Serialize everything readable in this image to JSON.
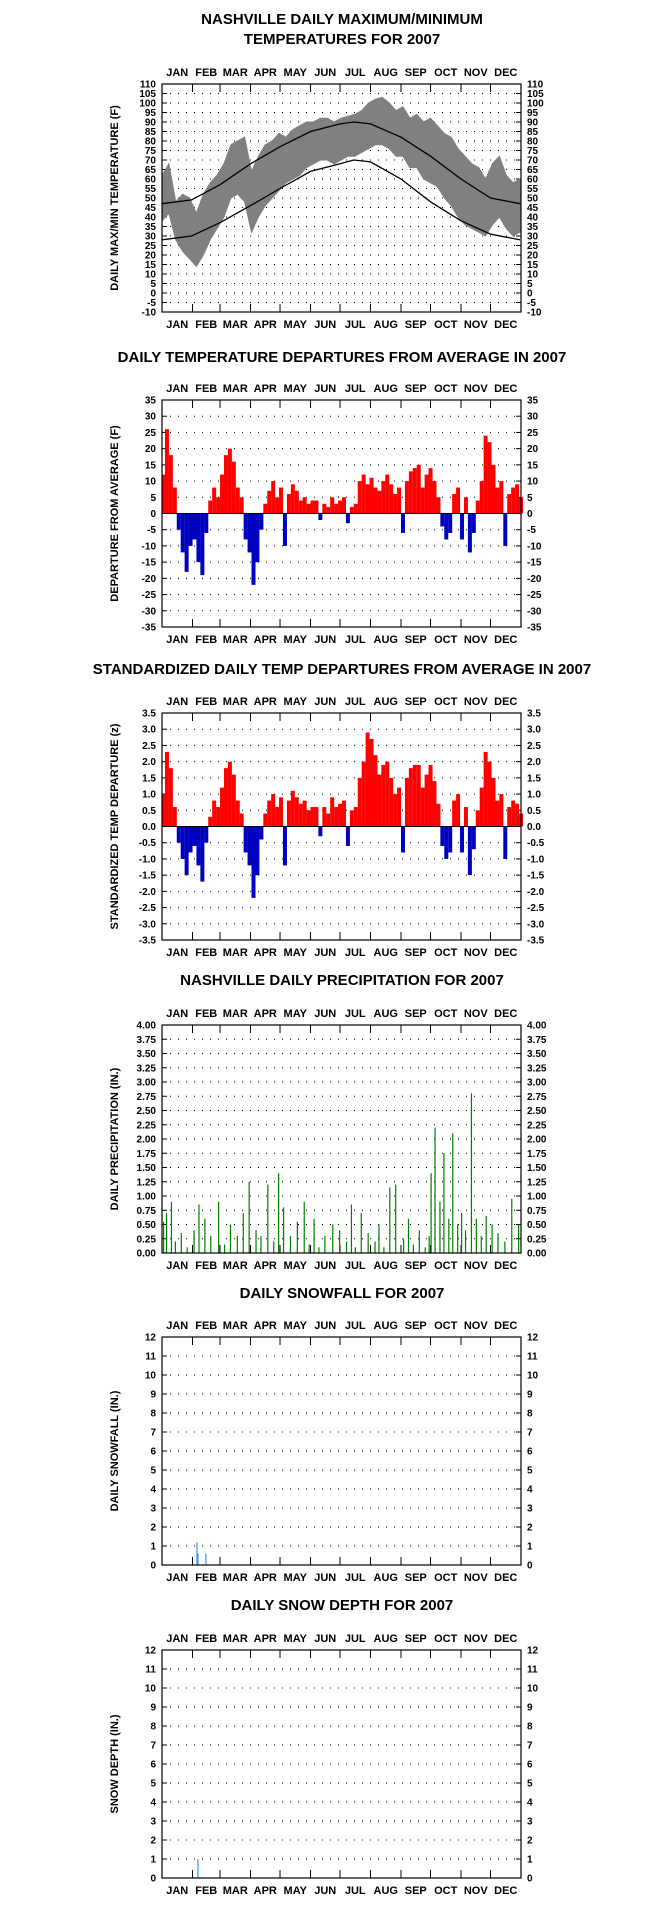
{
  "months": [
    "JAN",
    "FEB",
    "MAR",
    "APR",
    "MAY",
    "JUN",
    "JUL",
    "AUG",
    "SEP",
    "OCT",
    "NOV",
    "DEC"
  ],
  "colors": {
    "observed": "#808080",
    "normal": "#000000",
    "positive": "#ff0000",
    "negative": "#0000c0",
    "precip": "#008000",
    "snow": "#3399ff",
    "frame": "#000000",
    "grid_dots": "#000000"
  },
  "chart_data": [
    {
      "type": "line",
      "id": "temps",
      "title_lines": [
        "NASHVILLE DAILY MAXIMUM/MINIMUM",
        "TEMPERATURES FOR 2007"
      ],
      "ylabel": "DAILY MAX/MIN TEMPERATURE (F)",
      "ylim": [
        -10,
        110
      ],
      "ystep": 5,
      "decimals": 0,
      "grid": "dotted",
      "normals": {
        "x_day": [
          1,
          31,
          60,
          91,
          121,
          152,
          182,
          196,
          213,
          244,
          274,
          305,
          335,
          365
        ],
        "max": [
          47,
          49,
          57,
          68,
          77,
          85,
          89,
          90,
          89,
          82,
          72,
          60,
          50,
          47
        ],
        "min": [
          28,
          30,
          37,
          46,
          55,
          64,
          68,
          70,
          69,
          60,
          48,
          38,
          31,
          28
        ]
      },
      "observed_range": {
        "x_day": [
          1,
          8,
          15,
          22,
          29,
          36,
          43,
          50,
          57,
          64,
          71,
          78,
          85,
          92,
          99,
          106,
          113,
          120,
          127,
          134,
          141,
          148,
          155,
          162,
          169,
          176,
          183,
          190,
          197,
          204,
          211,
          218,
          225,
          232,
          239,
          246,
          253,
          260,
          267,
          274,
          281,
          288,
          295,
          302,
          309,
          316,
          323,
          330,
          337,
          344,
          351,
          358,
          365
        ],
        "high": [
          62,
          68,
          48,
          52,
          50,
          42,
          52,
          58,
          62,
          68,
          78,
          80,
          82,
          64,
          72,
          78,
          80,
          84,
          82,
          86,
          88,
          90,
          90,
          92,
          92,
          90,
          92,
          93,
          94,
          96,
          100,
          102,
          103,
          100,
          96,
          98,
          92,
          94,
          90,
          92,
          88,
          84,
          82,
          76,
          72,
          68,
          66,
          60,
          68,
          72,
          62,
          58,
          60
        ],
        "low": [
          38,
          42,
          28,
          22,
          18,
          14,
          20,
          28,
          34,
          40,
          50,
          52,
          48,
          32,
          40,
          46,
          50,
          54,
          58,
          60,
          62,
          66,
          68,
          70,
          70,
          68,
          70,
          72,
          72,
          74,
          76,
          78,
          78,
          76,
          72,
          72,
          66,
          66,
          60,
          58,
          56,
          50,
          46,
          40,
          36,
          34,
          32,
          30,
          36,
          40,
          34,
          30,
          32
        ]
      }
    },
    {
      "type": "bar",
      "id": "departures",
      "title_lines": [
        "DAILY TEMPERATURE DEPARTURES FROM AVERAGE IN 2007"
      ],
      "ylabel": "DEPARTURE FROM AVERAGE (F)",
      "ylim": [
        -35,
        35
      ],
      "ystep": 5,
      "decimals": 0,
      "grid": "dotted",
      "x_day": [
        1,
        4,
        8,
        12,
        16,
        20,
        24,
        28,
        32,
        36,
        40,
        44,
        48,
        52,
        56,
        60,
        64,
        68,
        72,
        76,
        80,
        84,
        88,
        92,
        96,
        100,
        104,
        108,
        112,
        116,
        120,
        124,
        128,
        132,
        136,
        140,
        144,
        148,
        152,
        156,
        160,
        164,
        168,
        172,
        176,
        180,
        184,
        188,
        192,
        196,
        200,
        204,
        208,
        212,
        216,
        220,
        224,
        228,
        232,
        236,
        240,
        244,
        248,
        252,
        256,
        260,
        264,
        268,
        272,
        276,
        280,
        284,
        288,
        292,
        296,
        300,
        304,
        308,
        312,
        316,
        320,
        324,
        328,
        332,
        336,
        340,
        344,
        348,
        352,
        356,
        360,
        364
      ],
      "values": [
        12,
        26,
        18,
        8,
        -5,
        -12,
        -18,
        -10,
        -8,
        -15,
        -19,
        -6,
        4,
        8,
        5,
        12,
        18,
        20,
        16,
        8,
        5,
        -8,
        -12,
        -22,
        -15,
        -5,
        3,
        7,
        10,
        5,
        8,
        -10,
        6,
        9,
        7,
        4,
        5,
        3,
        4,
        4,
        -2,
        3,
        2,
        5,
        3,
        4,
        5,
        -3,
        2,
        3,
        10,
        12,
        9,
        11,
        8,
        7,
        10,
        12,
        9,
        6,
        8,
        -6,
        10,
        13,
        14,
        15,
        8,
        12,
        14,
        10,
        5,
        -4,
        -8,
        -6,
        6,
        8,
        -8,
        5,
        -12,
        -6,
        4,
        10,
        24,
        22,
        15,
        8,
        10,
        -10,
        6,
        8,
        9,
        5
      ]
    },
    {
      "type": "bar",
      "id": "std_departures",
      "title_lines": [
        "STANDARDIZED DAILY TEMP DEPARTURES FROM AVERAGE IN 2007"
      ],
      "ylabel": "STANDARDIZED TEMP DEPARTURE (z)",
      "ylim": [
        -3.5,
        3.5
      ],
      "ystep": 0.5,
      "decimals": 1,
      "grid": "dotted",
      "x_day": [
        1,
        4,
        8,
        12,
        16,
        20,
        24,
        28,
        32,
        36,
        40,
        44,
        48,
        52,
        56,
        60,
        64,
        68,
        72,
        76,
        80,
        84,
        88,
        92,
        96,
        100,
        104,
        108,
        112,
        116,
        120,
        124,
        128,
        132,
        136,
        140,
        144,
        148,
        152,
        156,
        160,
        164,
        168,
        172,
        176,
        180,
        184,
        188,
        192,
        196,
        200,
        204,
        208,
        212,
        216,
        220,
        224,
        228,
        232,
        236,
        240,
        244,
        248,
        252,
        256,
        260,
        264,
        268,
        272,
        276,
        280,
        284,
        288,
        292,
        296,
        300,
        304,
        308,
        312,
        316,
        320,
        324,
        328,
        332,
        336,
        340,
        344,
        348,
        352,
        356,
        360,
        364
      ],
      "values": [
        1.0,
        2.3,
        1.8,
        0.6,
        -0.5,
        -1.0,
        -1.5,
        -0.8,
        -0.6,
        -1.2,
        -1.7,
        -0.5,
        0.3,
        0.8,
        0.6,
        1.2,
        1.8,
        2.0,
        1.6,
        0.8,
        0.4,
        -0.8,
        -1.2,
        -2.2,
        -1.5,
        -0.4,
        0.4,
        0.8,
        1.0,
        0.6,
        0.9,
        -1.2,
        0.8,
        1.1,
        0.9,
        0.7,
        0.8,
        0.5,
        0.6,
        0.6,
        -0.3,
        0.6,
        0.4,
        0.9,
        0.6,
        0.7,
        0.8,
        -0.6,
        0.5,
        0.6,
        1.5,
        2.0,
        2.9,
        2.7,
        2.2,
        1.6,
        1.9,
        2.0,
        1.5,
        1.0,
        1.2,
        -0.8,
        1.5,
        1.8,
        1.9,
        1.9,
        1.2,
        1.6,
        1.9,
        1.4,
        0.7,
        -0.6,
        -1.0,
        -0.8,
        0.8,
        1.0,
        -0.8,
        0.6,
        -1.5,
        -0.7,
        0.5,
        1.2,
        2.3,
        2.0,
        1.5,
        0.8,
        1.0,
        -1.0,
        0.6,
        0.8,
        0.7,
        0.4
      ]
    },
    {
      "type": "bar",
      "id": "precip",
      "title_lines": [
        "NASHVILLE DAILY PRECIPITATION FOR 2007"
      ],
      "ylabel": "DAILY PRECIPITATION (IN.)",
      "ylim": [
        0,
        4
      ],
      "ystep": 0.25,
      "decimals": 2,
      "grid": "dotted",
      "x_day": [
        2,
        5,
        10,
        14,
        20,
        26,
        33,
        38,
        44,
        50,
        58,
        64,
        70,
        77,
        83,
        89,
        96,
        101,
        108,
        114,
        119,
        124,
        131,
        138,
        145,
        150,
        155,
        160,
        166,
        174,
        181,
        188,
        193,
        197,
        203,
        210,
        217,
        221,
        226,
        232,
        238,
        246,
        251,
        256,
        262,
        268,
        272,
        274,
        278,
        283,
        287,
        292,
        296,
        301,
        305,
        309,
        315,
        320,
        325,
        330,
        336,
        342,
        349,
        356,
        363
      ],
      "values": [
        0.55,
        0.7,
        0.9,
        0.2,
        0.35,
        0.1,
        0.4,
        0.85,
        0.6,
        0.3,
        0.9,
        0.15,
        0.5,
        0.3,
        0.7,
        1.25,
        0.4,
        0.3,
        1.2,
        0.2,
        1.4,
        0.8,
        0.3,
        0.55,
        0.9,
        0.15,
        0.6,
        0.1,
        0.3,
        0.5,
        0.4,
        0.2,
        0.85,
        0.1,
        0.7,
        0.35,
        0.2,
        0.5,
        0.1,
        1.15,
        1.2,
        0.25,
        0.6,
        0.15,
        0.4,
        0.1,
        0.3,
        1.4,
        2.2,
        0.9,
        1.75,
        0.6,
        2.1,
        0.5,
        0.7,
        0.4,
        2.8,
        0.6,
        0.3,
        0.65,
        0.5,
        0.35,
        0.2,
        0.95,
        0.5
      ]
    },
    {
      "type": "bar",
      "id": "snowfall",
      "title_lines": [
        "DAILY SNOWFALL FOR 2007"
      ],
      "ylabel": "DAILY SNOWFALL (IN.)",
      "ylim": [
        0,
        12
      ],
      "ystep": 1,
      "decimals": 0,
      "grid": "dotted",
      "x_day": [
        36,
        37,
        45
      ],
      "values": [
        1.2,
        0.6,
        0.6
      ]
    },
    {
      "type": "bar",
      "id": "snowdepth",
      "title_lines": [
        "DAILY SNOW DEPTH FOR 2007"
      ],
      "ylabel": "SNOW DEPTH (IN.)",
      "ylim": [
        0,
        12
      ],
      "ystep": 1,
      "decimals": 0,
      "grid": "dotted",
      "x_day": [
        37
      ],
      "values": [
        1
      ]
    }
  ]
}
